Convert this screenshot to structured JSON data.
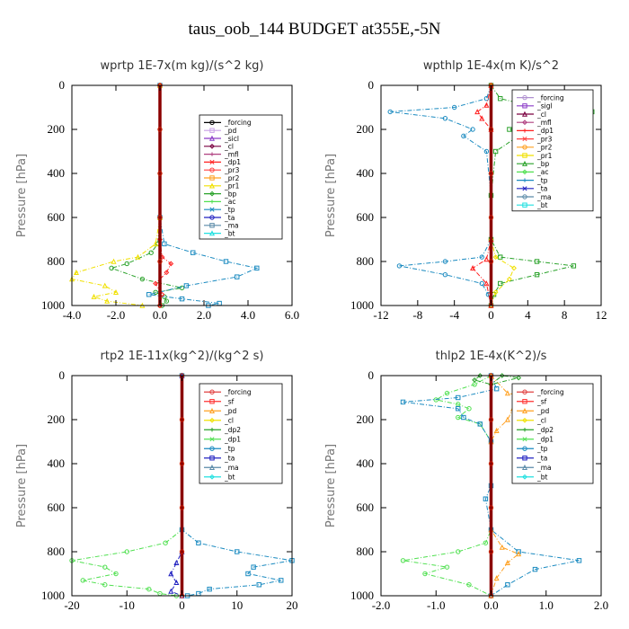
{
  "title": "taus_oob_144  BUDGET at355E,-5N",
  "chart_data": [
    {
      "type": "line",
      "title": "wprtp   1E-7x(m kg)/(s^2 kg)",
      "ylabel": "Pressure [hPa]",
      "xlim": [
        -4,
        6
      ],
      "ylim": [
        1000,
        0
      ],
      "xticks": [
        "-4.0",
        "-2.0",
        "0.0",
        "2.0",
        "4.0",
        "6.0"
      ],
      "xtick_values": [
        -4,
        -2,
        0,
        2,
        4,
        6
      ],
      "yticks": [
        "0",
        "200",
        "400",
        "600",
        "800",
        "1000"
      ],
      "ytick_values": [
        0,
        200,
        400,
        600,
        800,
        1000
      ],
      "legend": [
        "_forcing",
        "_pd",
        "_sicl",
        "_cl",
        "_mfl",
        "_dp1",
        "_pr3",
        "_pr2",
        "_pr1",
        "_bp",
        "_ac",
        "_tp",
        "_ta",
        "_ma",
        "_bt"
      ],
      "colors": [
        "#000000",
        "#c8a0e6",
        "#8c3cc8",
        "#7a0040",
        "#b04080",
        "#ff2020",
        "#ff4040",
        "#ffa020",
        "#f0e000",
        "#2aa22a",
        "#50e050",
        "#1a8ac0",
        "#2020c0",
        "#5a8aa8",
        "#20e0e0"
      ],
      "series": [
        {
          "name": "_bp",
          "x": [
            0,
            0,
            -0.1,
            -0.4,
            -1.5,
            -2.2,
            -0.8,
            1.0,
            -0.2,
            0.2,
            0.3,
            0.1
          ],
          "y": [
            0,
            600,
            720,
            760,
            810,
            830,
            880,
            920,
            940,
            960,
            980,
            1000
          ]
        },
        {
          "name": "_tp",
          "x": [
            0,
            0,
            0.2,
            1.5,
            3.0,
            4.4,
            3.5,
            1.2,
            -0.5,
            1.0,
            2.7,
            2.2
          ],
          "y": [
            0,
            600,
            720,
            760,
            800,
            830,
            870,
            910,
            950,
            970,
            990,
            1000
          ]
        },
        {
          "name": "_pr1",
          "x": [
            0,
            0,
            -0.2,
            -1.0,
            -2.1,
            -3.8,
            -4.0,
            -2.5,
            -2.0,
            -3.0,
            -2.4,
            -0.8
          ],
          "y": [
            0,
            600,
            720,
            780,
            800,
            850,
            880,
            910,
            940,
            960,
            980,
            1000
          ]
        },
        {
          "name": "_dp1",
          "x": [
            0,
            0,
            0.1,
            0.5,
            0.3,
            -0.2,
            0.1,
            0
          ],
          "y": [
            0,
            700,
            780,
            810,
            850,
            900,
            950,
            1000
          ]
        },
        {
          "name": "_forcing",
          "x": [
            0,
            0,
            0,
            0,
            0,
            0
          ],
          "y": [
            0,
            200,
            400,
            600,
            800,
            1000
          ]
        }
      ]
    },
    {
      "type": "line",
      "title": "wpthlp   1E-4x(m K)/s^2",
      "ylabel": "Pressure [hPa]",
      "xlim": [
        -12,
        12
      ],
      "ylim": [
        1000,
        0
      ],
      "xticks": [
        "-12",
        "-8",
        "-4",
        "0",
        "4",
        "8",
        "12"
      ],
      "xtick_values": [
        -12,
        -8,
        -4,
        0,
        4,
        8,
        12
      ],
      "yticks": [
        "0",
        "200",
        "400",
        "600",
        "800",
        "1000"
      ],
      "ytick_values": [
        0,
        200,
        400,
        600,
        800,
        1000
      ],
      "legend": [
        "_forcing",
        "_sigl",
        "_cl",
        "_mfl",
        "_dp1",
        "_pr3",
        "_pr2",
        "_pr1",
        "_bp",
        "_ac",
        "_tp",
        "_ta",
        "_ma",
        "_bt"
      ],
      "colors": [
        "#b090d0",
        "#8c3cc8",
        "#7a0040",
        "#b04080",
        "#ff2020",
        "#ff4040",
        "#ffa020",
        "#f0e000",
        "#2aa22a",
        "#50e050",
        "#1a8ac0",
        "#2020c0",
        "#5a8aa8",
        "#20e0e0"
      ],
      "series": [
        {
          "name": "_tp",
          "x": [
            0,
            -0.5,
            -4,
            -11,
            -5,
            -2,
            -3,
            -0.5,
            0,
            0,
            -1,
            -5,
            -10,
            -5,
            -1,
            -0.3,
            0
          ],
          "y": [
            0,
            60,
            100,
            120,
            150,
            200,
            230,
            300,
            500,
            700,
            780,
            800,
            820,
            860,
            900,
            950,
            1000
          ]
        },
        {
          "name": "_bp",
          "x": [
            0,
            1,
            5,
            11,
            6,
            2,
            3,
            0.5,
            0,
            0,
            1,
            5,
            9,
            5,
            1,
            0.3,
            0
          ],
          "y": [
            0,
            60,
            100,
            120,
            150,
            200,
            230,
            300,
            500,
            700,
            780,
            800,
            820,
            860,
            900,
            950,
            1000
          ]
        },
        {
          "name": "_dp1",
          "x": [
            0,
            -0.5,
            -1.5,
            -1.0,
            0,
            0,
            -0.5,
            -2,
            -0.5,
            0
          ],
          "y": [
            0,
            90,
            120,
            150,
            200,
            700,
            790,
            830,
            900,
            1000
          ]
        },
        {
          "name": "_pr1",
          "x": [
            0,
            0,
            0.5,
            2.5,
            2.0,
            0.5,
            0
          ],
          "y": [
            0,
            700,
            780,
            830,
            880,
            940,
            1000
          ]
        },
        {
          "name": "_forcing",
          "x": [
            0,
            0,
            0,
            0,
            0,
            0
          ],
          "y": [
            0,
            200,
            400,
            600,
            800,
            1000
          ]
        }
      ]
    },
    {
      "type": "line",
      "title": "rtp2   1E-11x(kg^2)/(kg^2 s)",
      "ylabel": "Pressure [hPa]",
      "xlim": [
        -20,
        20
      ],
      "ylim": [
        1000,
        0
      ],
      "xticks": [
        "-20",
        "-10",
        "0",
        "10",
        "20"
      ],
      "xtick_values": [
        -20,
        -10,
        0,
        10,
        20
      ],
      "yticks": [
        "0",
        "200",
        "400",
        "600",
        "800",
        "1000"
      ],
      "ytick_values": [
        0,
        200,
        400,
        600,
        800,
        1000
      ],
      "legend": [
        "_forcing",
        "_sf",
        "_pd",
        "_cl",
        "_dp2",
        "_dp1",
        "_tp",
        "_ta",
        "_ma",
        "_bt"
      ],
      "colors": [
        "#e04040",
        "#ff3030",
        "#ffa020",
        "#f0e000",
        "#2aa22a",
        "#50e050",
        "#1a8ac0",
        "#2020c0",
        "#5a8aa8",
        "#20e0e0"
      ],
      "series": [
        {
          "name": "_dp1",
          "x": [
            0,
            0,
            -3,
            -10,
            -20,
            -14,
            -12,
            -18,
            -14,
            -6,
            -4,
            -1
          ],
          "y": [
            0,
            700,
            760,
            800,
            840,
            870,
            900,
            930,
            950,
            970,
            990,
            1000
          ]
        },
        {
          "name": "_tp",
          "x": [
            0,
            0,
            3,
            10,
            20,
            13,
            12,
            18,
            14,
            5,
            3,
            1
          ],
          "y": [
            0,
            700,
            760,
            800,
            840,
            870,
            900,
            930,
            950,
            970,
            990,
            1000
          ]
        },
        {
          "name": "_ta",
          "x": [
            0,
            0,
            -1,
            -2,
            -1,
            -2,
            0
          ],
          "y": [
            0,
            800,
            850,
            900,
            940,
            980,
            1000
          ]
        },
        {
          "name": "_forcing",
          "x": [
            0,
            0,
            0,
            0,
            0,
            0
          ],
          "y": [
            0,
            200,
            400,
            600,
            800,
            1000
          ]
        }
      ]
    },
    {
      "type": "line",
      "title": "thlp2   1E-4x(K^2)/s",
      "ylabel": "Pressure [hPa]",
      "xlim": [
        -2,
        2
      ],
      "ylim": [
        1000,
        0
      ],
      "xticks": [
        "-2.0",
        "-1.0",
        "0.0",
        "1.0",
        "2.0"
      ],
      "xtick_values": [
        -2,
        -1,
        0,
        1,
        2
      ],
      "yticks": [
        "0",
        "200",
        "400",
        "600",
        "800",
        "1000"
      ],
      "ytick_values": [
        0,
        200,
        400,
        600,
        800,
        1000
      ],
      "legend": [
        "_forcing",
        "_sf",
        "_pd",
        "_cl",
        "_dp2",
        "_dp1",
        "_tp",
        "_ta",
        "_ma",
        "_bt"
      ],
      "colors": [
        "#e04040",
        "#ff3030",
        "#ffa020",
        "#f0e000",
        "#2aa22a",
        "#50e050",
        "#1a8ac0",
        "#2020c0",
        "#5a8aa8",
        "#20e0e0"
      ],
      "series": [
        {
          "name": "_dp1",
          "x": [
            0,
            -0.3,
            -0.8,
            -1.0,
            -0.6,
            -0.4,
            -0.6,
            -0.2,
            0,
            0,
            -0.1,
            -0.6,
            -1.6,
            -0.8,
            -1.2,
            -0.4,
            0
          ],
          "y": [
            0,
            40,
            80,
            110,
            130,
            150,
            190,
            220,
            300,
            700,
            760,
            800,
            840,
            870,
            900,
            950,
            1000
          ]
        },
        {
          "name": "_tp",
          "x": [
            0,
            0.1,
            -0.6,
            -1.6,
            -0.6,
            -0.5,
            -0.2,
            0,
            0,
            -0.1,
            0,
            0.5,
            1.6,
            0.8,
            0.3,
            0
          ],
          "y": [
            0,
            60,
            100,
            120,
            150,
            190,
            220,
            300,
            500,
            560,
            700,
            800,
            840,
            880,
            950,
            1000
          ]
        },
        {
          "name": "_pd",
          "x": [
            0,
            0.3,
            1.2,
            0.4,
            0.3,
            0.1,
            0,
            0,
            0.2,
            0.5,
            0.3,
            0.1,
            0
          ],
          "y": [
            0,
            80,
            120,
            150,
            200,
            250,
            300,
            700,
            780,
            810,
            850,
            920,
            1000
          ]
        },
        {
          "name": "_dp2",
          "x": [
            -0.2,
            -0.3,
            0,
            0.5,
            0.2,
            0
          ],
          "y": [
            0,
            20,
            40,
            10,
            0,
            40
          ]
        },
        {
          "name": "_forcing",
          "x": [
            0,
            0,
            0,
            0,
            0,
            0
          ],
          "y": [
            0,
            200,
            400,
            600,
            800,
            1000
          ]
        }
      ]
    }
  ]
}
